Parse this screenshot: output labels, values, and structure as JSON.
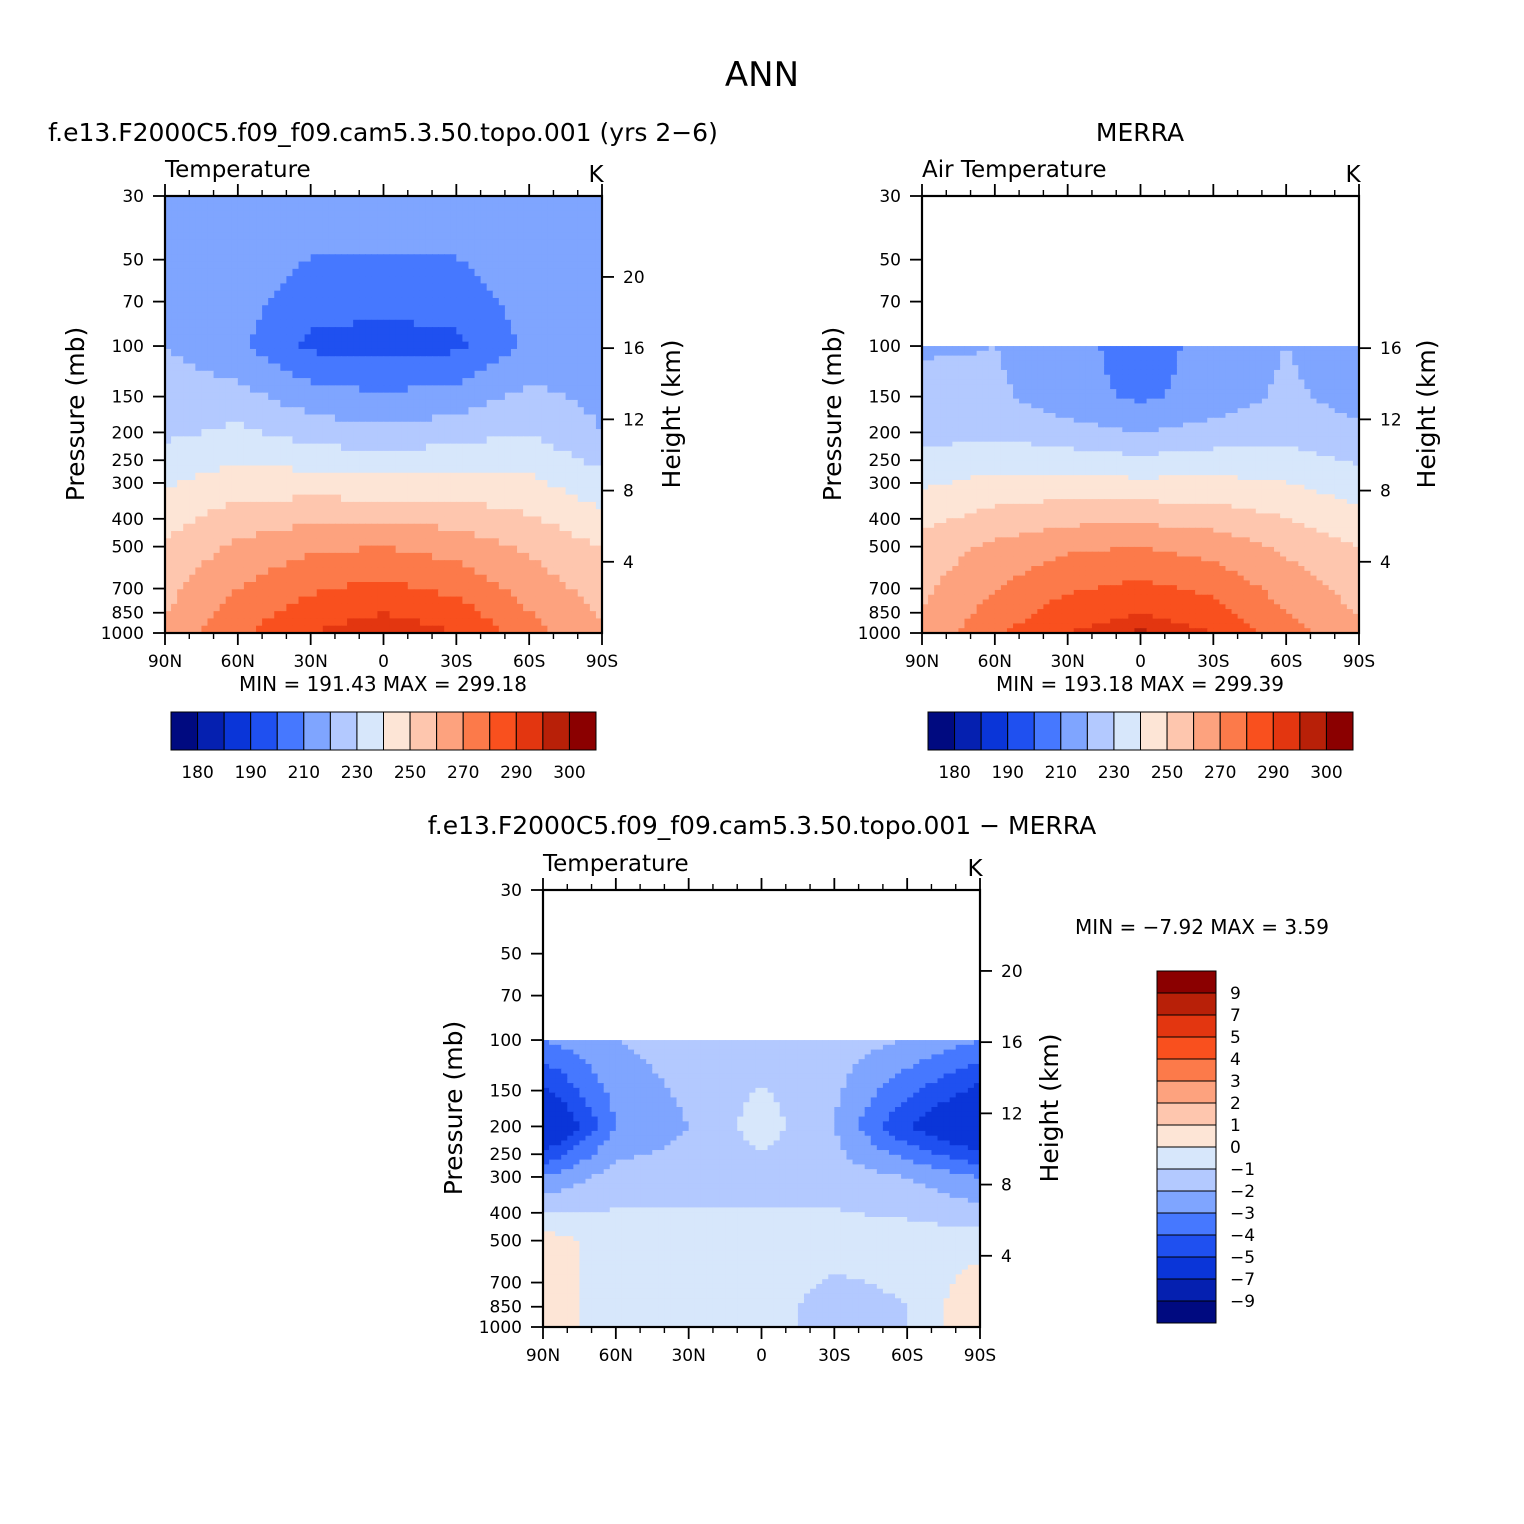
{
  "figure": {
    "main_title": "ANN"
  },
  "chart_data": [
    {
      "type": "heatmap",
      "panel": "model",
      "title": "f.e13.F2000C5.f09_f09.cam5.3.50.topo.001 (yrs 2−6)",
      "variable_label": "Temperature",
      "units": "K",
      "ylabel": "Pressure (mb)",
      "ylabel_right": "Height (km)",
      "x_ticks": [
        "90N",
        "60N",
        "30N",
        "0",
        "30S",
        "60S",
        "90S"
      ],
      "x_range": [
        90,
        -90
      ],
      "y_ticks": [
        30,
        50,
        70,
        100,
        150,
        200,
        250,
        300,
        400,
        500,
        700,
        850,
        1000
      ],
      "y_range_mb": [
        30,
        1000
      ],
      "y_scale": "log",
      "height_ticks_km": [
        20,
        16,
        12,
        8,
        4
      ],
      "stats_text": "MIN = 191.43 MAX = 299.18",
      "min": 191.43,
      "max": 299.18,
      "levels": [
        180,
        185,
        190,
        200,
        210,
        220,
        230,
        240,
        250,
        260,
        270,
        280,
        290,
        295,
        300
      ],
      "colorbar_labels": [
        "180",
        "190",
        "210",
        "230",
        "250",
        "270",
        "290",
        "300"
      ],
      "colorbar_orientation": "horizontal",
      "lat_sample": [
        90,
        60,
        30,
        0,
        -30,
        -60,
        -90
      ],
      "p_sample": [
        30,
        100,
        200,
        500,
        1000
      ],
      "values_approx": [
        [
          220,
          220,
          218,
          218,
          218,
          220,
          215
        ],
        [
          220,
          212,
          198,
          196,
          198,
          212,
          214
        ],
        [
          228,
          232,
          226,
          222,
          226,
          230,
          220
        ],
        [
          252,
          262,
          268,
          270,
          266,
          258,
          250
        ],
        [
          262,
          278,
          290,
          296,
          290,
          274,
          262
        ]
      ]
    },
    {
      "type": "heatmap",
      "panel": "observations",
      "title": "MERRA",
      "variable_label": "Air Temperature",
      "units": "K",
      "ylabel": "Pressure (mb)",
      "ylabel_right": "Height (km)",
      "x_ticks": [
        "90N",
        "60N",
        "30N",
        "0",
        "30S",
        "60S",
        "90S"
      ],
      "x_range": [
        90,
        -90
      ],
      "y_ticks": [
        30,
        50,
        70,
        100,
        150,
        200,
        250,
        300,
        400,
        500,
        700,
        850,
        1000
      ],
      "y_range_mb": [
        30,
        1000
      ],
      "y_scale": "log",
      "data_top_mb": 100,
      "height_ticks_km": [
        16,
        12,
        8,
        4
      ],
      "stats_text": "MIN = 193.18 MAX = 299.39",
      "min": 193.18,
      "max": 299.39,
      "levels": [
        180,
        185,
        190,
        200,
        210,
        220,
        230,
        240,
        250,
        260,
        270,
        280,
        290,
        295,
        300
      ],
      "colorbar_labels": [
        "180",
        "190",
        "210",
        "230",
        "250",
        "270",
        "290",
        "300"
      ],
      "colorbar_orientation": "horizontal",
      "lat_sample": [
        90,
        60,
        30,
        0,
        -30,
        -60,
        -90
      ],
      "p_sample": [
        100,
        150,
        200,
        500,
        1000
      ],
      "values_approx": [
        [
          218,
          220,
          214,
          205,
          214,
          220,
          214
        ],
        [
          226,
          222,
          214,
          208,
          214,
          222,
          216
        ],
        [
          226,
          228,
          224,
          220,
          224,
          226,
          222
        ],
        [
          254,
          262,
          268,
          270,
          266,
          258,
          250
        ],
        [
          262,
          278,
          290,
          296,
          290,
          274,
          262
        ]
      ]
    },
    {
      "type": "heatmap",
      "panel": "difference",
      "title": "f.e13.F2000C5.f09_f09.cam5.3.50.topo.001 − MERRA",
      "variable_label": "Temperature",
      "units": "K",
      "ylabel": "Pressure (mb)",
      "ylabel_right": "Height (km)",
      "x_ticks": [
        "90N",
        "60N",
        "30N",
        "0",
        "30S",
        "60S",
        "90S"
      ],
      "x_range": [
        90,
        -90
      ],
      "y_ticks": [
        30,
        50,
        70,
        100,
        150,
        200,
        250,
        300,
        400,
        500,
        700,
        850,
        1000
      ],
      "y_range_mb": [
        30,
        1000
      ],
      "y_scale": "log",
      "data_top_mb": 100,
      "height_ticks_km": [
        20,
        16,
        12,
        8,
        4
      ],
      "stats_text": "MIN = −7.92 MAX = 3.59",
      "min": -7.92,
      "max": 3.59,
      "levels": [
        -9,
        -7,
        -5,
        -4,
        -3,
        -2,
        -1,
        0,
        1,
        2,
        3,
        4,
        5,
        7,
        9
      ],
      "colorbar_labels": [
        "9",
        "7",
        "5",
        "4",
        "3",
        "2",
        "1",
        "0",
        "−1",
        "−2",
        "−3",
        "−4",
        "−5",
        "−7",
        "−9"
      ],
      "colorbar_orientation": "vertical",
      "lat_sample": [
        90,
        60,
        30,
        0,
        -30,
        -60,
        -90
      ],
      "p_sample": [
        100,
        200,
        300,
        500,
        850
      ],
      "values_approx": [
        [
          -3,
          -2,
          -1.5,
          -1.5,
          -1.5,
          -2,
          -3
        ],
        [
          -7,
          -3,
          -2,
          -0.5,
          -2,
          -5,
          -7
        ],
        [
          -3,
          -1.5,
          -1.5,
          -1.5,
          -1.5,
          -2,
          -3
        ],
        [
          0.5,
          -0.5,
          -0.5,
          -0.5,
          -0.5,
          -0.5,
          -0.5
        ],
        [
          0.5,
          -0.5,
          -0.5,
          -0.5,
          -1.5,
          -1,
          1
        ]
      ]
    }
  ],
  "colors": {
    "palette": [
      "#000a80",
      "#0520b0",
      "#0a35d8",
      "#1f50f0",
      "#4678ff",
      "#7fa5ff",
      "#b3c9ff",
      "#d7e7fb",
      "#fde5d6",
      "#fec6ae",
      "#fda27e",
      "#fc7a4a",
      "#f9501e",
      "#e33610",
      "#b82008",
      "#8b0000"
    ]
  }
}
